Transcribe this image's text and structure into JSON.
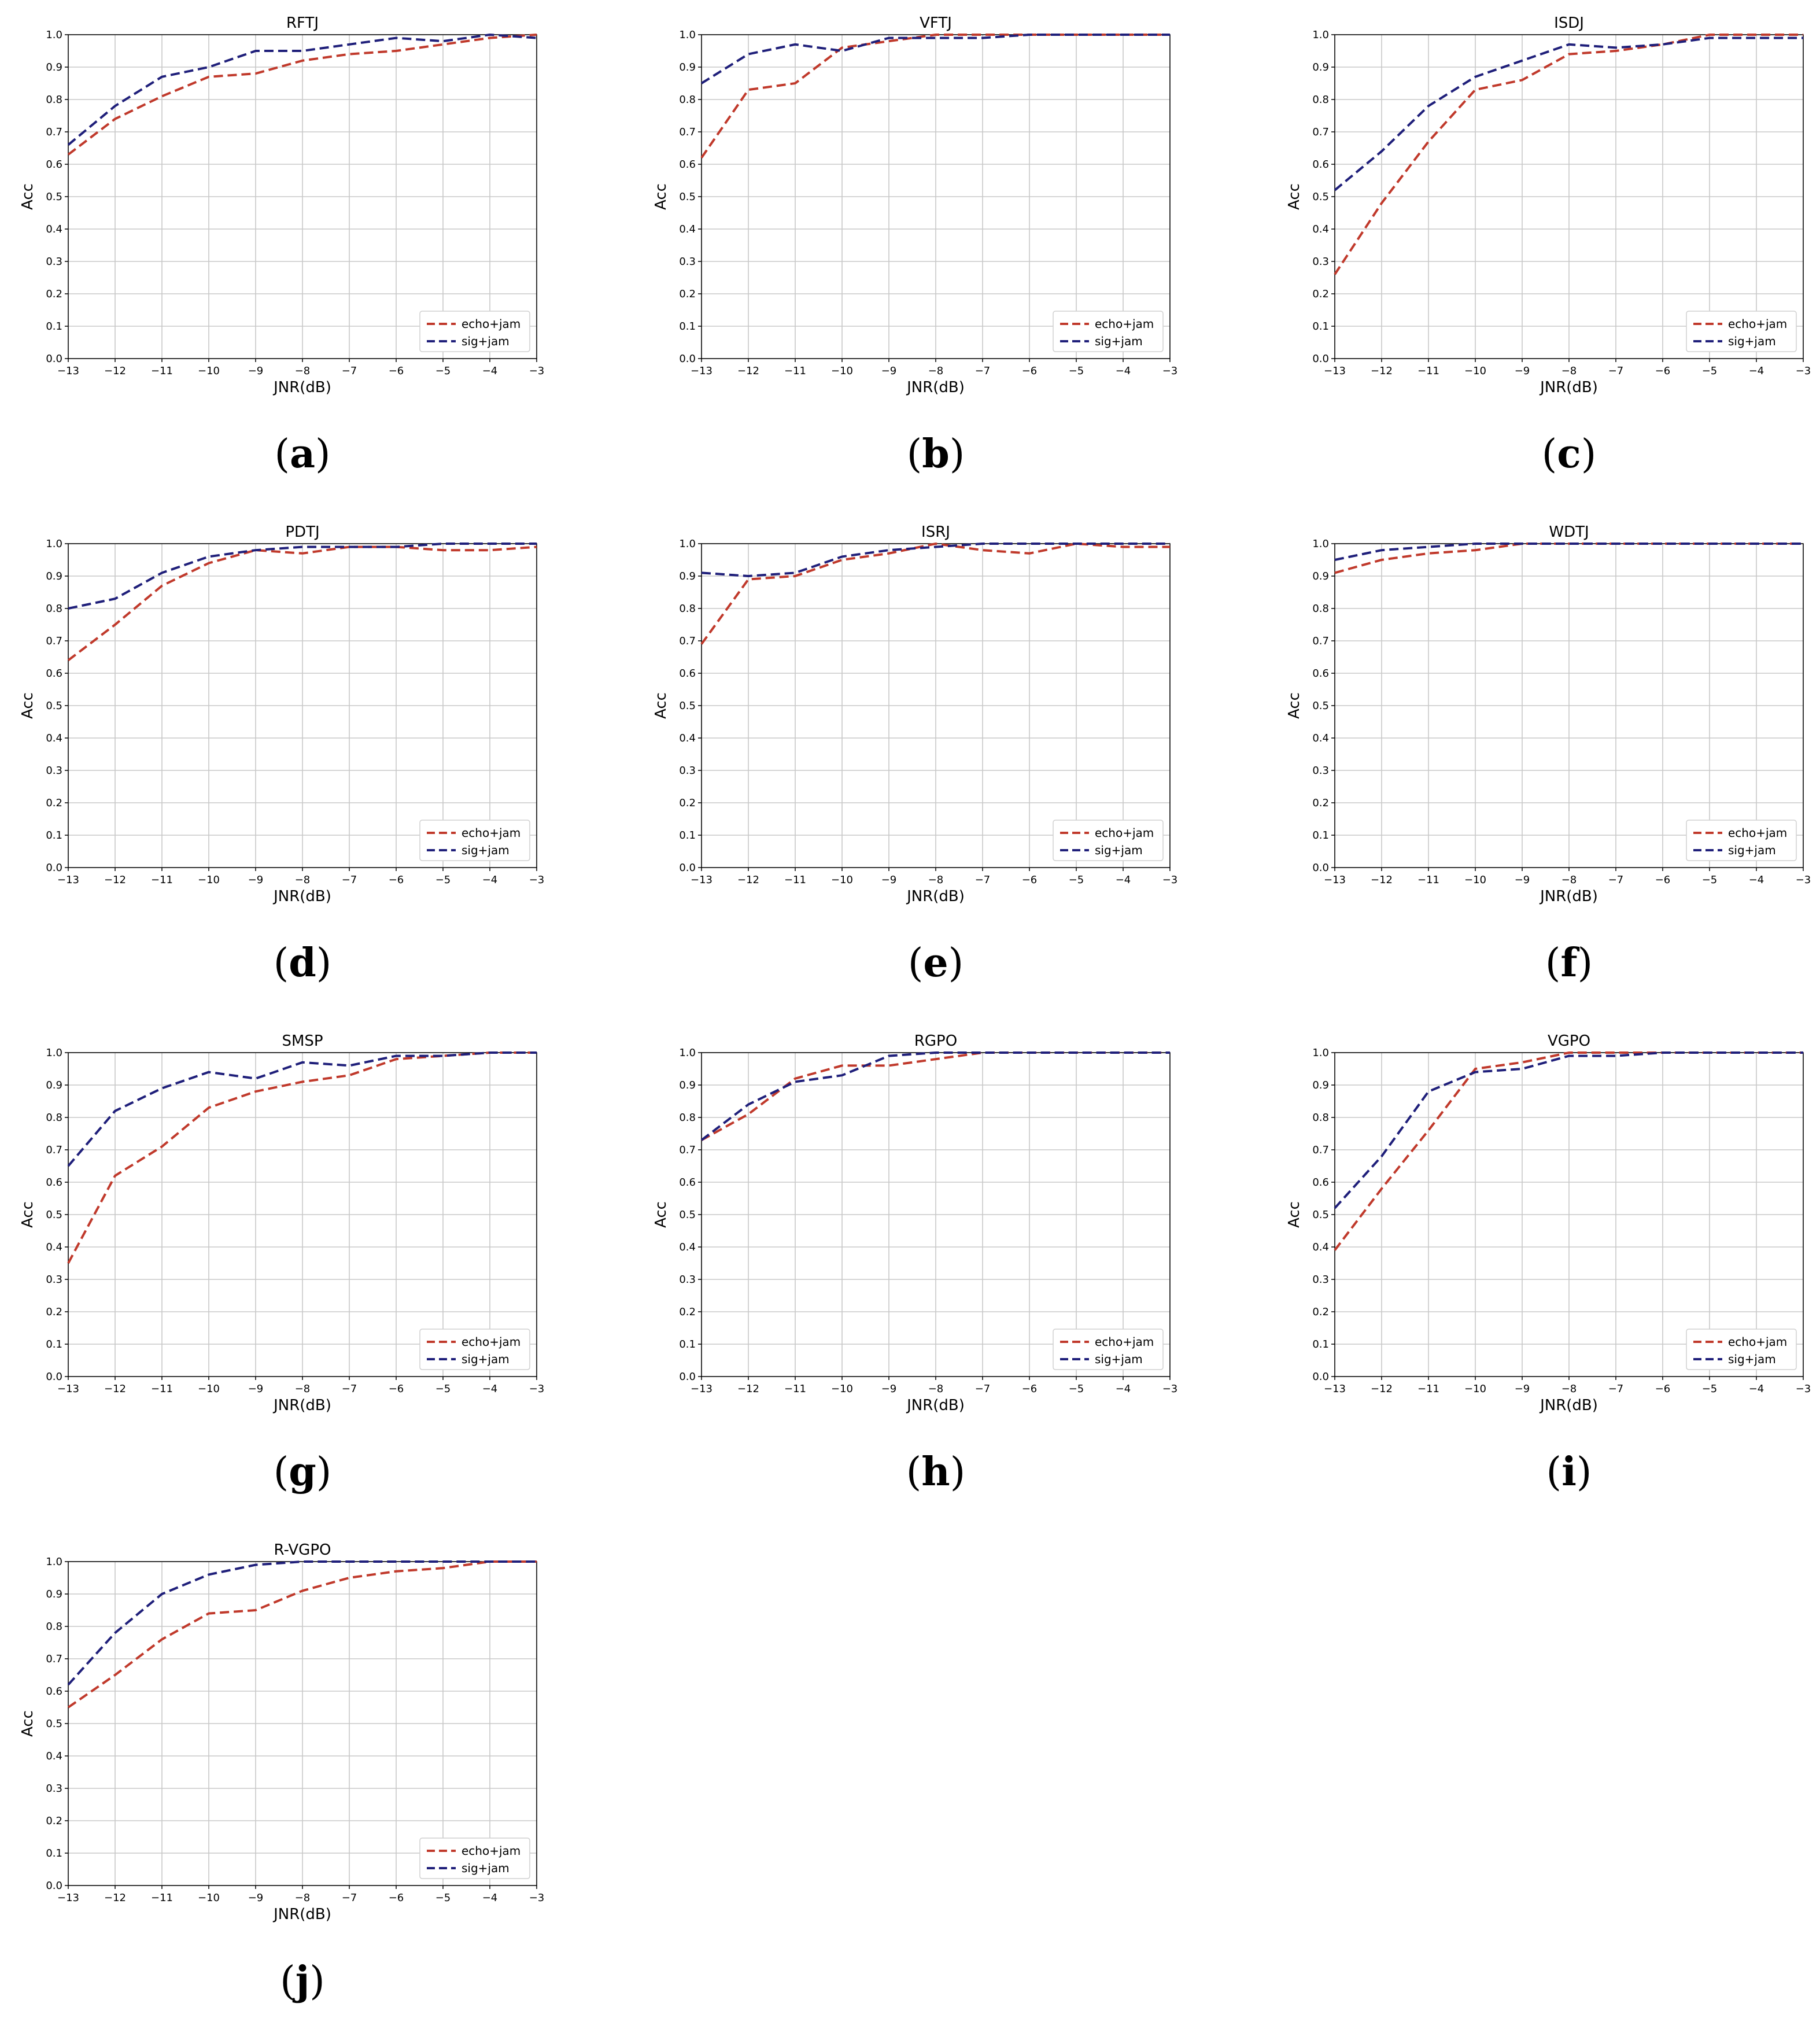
{
  "colors": {
    "echo_jam": "#c0392b",
    "sig_jam": "#1f1f7a",
    "grid": "#c8c8c8"
  },
  "chart_data": [
    {
      "type": "line",
      "panel_label": "a",
      "title": "RFTJ",
      "xlabel": "JNR(dB)",
      "ylabel": "Acc",
      "x": [
        -13,
        -12,
        -11,
        -10,
        -9,
        -8,
        -7,
        -6,
        -5,
        -4,
        -3
      ],
      "xlim": [
        -13,
        -3
      ],
      "ylim": [
        0,
        1
      ],
      "xticks": [
        "−13",
        "−12",
        "−11",
        "−10",
        "−9",
        "−8",
        "−7",
        "−6",
        "−5",
        "−4",
        "−3"
      ],
      "yticks": [
        "0.0",
        "0.1",
        "0.2",
        "0.3",
        "0.4",
        "0.5",
        "0.6",
        "0.7",
        "0.8",
        "0.9",
        "1.0"
      ],
      "grid": true,
      "legend": "lower right",
      "series": [
        {
          "name": "echo+jam",
          "values": [
            0.63,
            0.74,
            0.81,
            0.87,
            0.88,
            0.92,
            0.94,
            0.95,
            0.97,
            0.99,
            1.0
          ]
        },
        {
          "name": "sig+jam",
          "values": [
            0.66,
            0.78,
            0.87,
            0.9,
            0.95,
            0.95,
            0.97,
            0.99,
            0.98,
            1.0,
            0.99
          ]
        }
      ]
    },
    {
      "type": "line",
      "panel_label": "b",
      "title": "VFTJ",
      "xlabel": "JNR(dB)",
      "ylabel": "Acc",
      "x": [
        -13,
        -12,
        -11,
        -10,
        -9,
        -8,
        -7,
        -6,
        -5,
        -4,
        -3
      ],
      "xlim": [
        -13,
        -3
      ],
      "ylim": [
        0,
        1
      ],
      "xticks": [
        "−13",
        "−12",
        "−11",
        "−10",
        "−9",
        "−8",
        "−7",
        "−6",
        "−5",
        "−4",
        "−3"
      ],
      "yticks": [
        "0.0",
        "0.1",
        "0.2",
        "0.3",
        "0.4",
        "0.5",
        "0.6",
        "0.7",
        "0.8",
        "0.9",
        "1.0"
      ],
      "grid": true,
      "legend": "lower right",
      "series": [
        {
          "name": "echo+jam",
          "values": [
            0.62,
            0.83,
            0.85,
            0.96,
            0.98,
            1.0,
            1.0,
            1.0,
            1.0,
            1.0,
            1.0
          ]
        },
        {
          "name": "sig+jam",
          "values": [
            0.85,
            0.94,
            0.97,
            0.95,
            0.99,
            0.99,
            0.99,
            1.0,
            1.0,
            1.0,
            1.0
          ]
        }
      ]
    },
    {
      "type": "line",
      "panel_label": "c",
      "title": "ISDJ",
      "xlabel": "JNR(dB)",
      "ylabel": "Acc",
      "x": [
        -13,
        -12,
        -11,
        -10,
        -9,
        -8,
        -7,
        -6,
        -5,
        -4,
        -3
      ],
      "xlim": [
        -13,
        -3
      ],
      "ylim": [
        0,
        1
      ],
      "xticks": [
        "−13",
        "−12",
        "−11",
        "−10",
        "−9",
        "−8",
        "−7",
        "−6",
        "−5",
        "−4",
        "−3"
      ],
      "yticks": [
        "0.0",
        "0.1",
        "0.2",
        "0.3",
        "0.4",
        "0.5",
        "0.6",
        "0.7",
        "0.8",
        "0.9",
        "1.0"
      ],
      "grid": true,
      "legend": "lower right",
      "series": [
        {
          "name": "echo+jam",
          "values": [
            0.26,
            0.48,
            0.67,
            0.83,
            0.86,
            0.94,
            0.95,
            0.97,
            1.0,
            1.0,
            1.0
          ]
        },
        {
          "name": "sig+jam",
          "values": [
            0.52,
            0.64,
            0.78,
            0.87,
            0.92,
            0.97,
            0.96,
            0.97,
            0.99,
            0.99,
            0.99
          ]
        }
      ]
    },
    {
      "type": "line",
      "panel_label": "d",
      "title": "PDTJ",
      "xlabel": "JNR(dB)",
      "ylabel": "Acc",
      "x": [
        -13,
        -12,
        -11,
        -10,
        -9,
        -8,
        -7,
        -6,
        -5,
        -4,
        -3
      ],
      "xlim": [
        -13,
        -3
      ],
      "ylim": [
        0,
        1
      ],
      "xticks": [
        "−13",
        "−12",
        "−11",
        "−10",
        "−9",
        "−8",
        "−7",
        "−6",
        "−5",
        "−4",
        "−3"
      ],
      "yticks": [
        "0.0",
        "0.1",
        "0.2",
        "0.3",
        "0.4",
        "0.5",
        "0.6",
        "0.7",
        "0.8",
        "0.9",
        "1.0"
      ],
      "grid": true,
      "legend": "lower right",
      "series": [
        {
          "name": "echo+jam",
          "values": [
            0.64,
            0.75,
            0.87,
            0.94,
            0.98,
            0.97,
            0.99,
            0.99,
            0.98,
            0.98,
            0.99
          ]
        },
        {
          "name": "sig+jam",
          "values": [
            0.8,
            0.83,
            0.91,
            0.96,
            0.98,
            0.99,
            0.99,
            0.99,
            1.0,
            1.0,
            1.0
          ]
        }
      ]
    },
    {
      "type": "line",
      "panel_label": "e",
      "title": "ISRJ",
      "xlabel": "JNR(dB)",
      "ylabel": "Acc",
      "x": [
        -13,
        -12,
        -11,
        -10,
        -9,
        -8,
        -7,
        -6,
        -5,
        -4,
        -3
      ],
      "xlim": [
        -13,
        -3
      ],
      "ylim": [
        0,
        1
      ],
      "xticks": [
        "−13",
        "−12",
        "−11",
        "−10",
        "−9",
        "−8",
        "−7",
        "−6",
        "−5",
        "−4",
        "−3"
      ],
      "yticks": [
        "0.0",
        "0.1",
        "0.2",
        "0.3",
        "0.4",
        "0.5",
        "0.6",
        "0.7",
        "0.8",
        "0.9",
        "1.0"
      ],
      "grid": true,
      "legend": "lower right",
      "series": [
        {
          "name": "echo+jam",
          "values": [
            0.69,
            0.89,
            0.9,
            0.95,
            0.97,
            1.0,
            0.98,
            0.97,
            1.0,
            0.99,
            0.99
          ]
        },
        {
          "name": "sig+jam",
          "values": [
            0.91,
            0.9,
            0.91,
            0.96,
            0.98,
            0.99,
            1.0,
            1.0,
            1.0,
            1.0,
            1.0
          ]
        }
      ]
    },
    {
      "type": "line",
      "panel_label": "f",
      "title": "WDTJ",
      "xlabel": "JNR(dB)",
      "ylabel": "Acc",
      "x": [
        -13,
        -12,
        -11,
        -10,
        -9,
        -8,
        -7,
        -6,
        -5,
        -4,
        -3
      ],
      "xlim": [
        -13,
        -3
      ],
      "ylim": [
        0,
        1
      ],
      "xticks": [
        "−13",
        "−12",
        "−11",
        "−10",
        "−9",
        "−8",
        "−7",
        "−6",
        "−5",
        "−4",
        "−3"
      ],
      "yticks": [
        "0.0",
        "0.1",
        "0.2",
        "0.3",
        "0.4",
        "0.5",
        "0.6",
        "0.7",
        "0.8",
        "0.9",
        "1.0"
      ],
      "grid": true,
      "legend": "lower right",
      "series": [
        {
          "name": "echo+jam",
          "values": [
            0.91,
            0.95,
            0.97,
            0.98,
            1.0,
            1.0,
            1.0,
            1.0,
            1.0,
            1.0,
            1.0
          ]
        },
        {
          "name": "sig+jam",
          "values": [
            0.95,
            0.98,
            0.99,
            1.0,
            1.0,
            1.0,
            1.0,
            1.0,
            1.0,
            1.0,
            1.0
          ]
        }
      ]
    },
    {
      "type": "line",
      "panel_label": "g",
      "title": "SMSP",
      "xlabel": "JNR(dB)",
      "ylabel": "Acc",
      "x": [
        -13,
        -12,
        -11,
        -10,
        -9,
        -8,
        -7,
        -6,
        -5,
        -4,
        -3
      ],
      "xlim": [
        -13,
        -3
      ],
      "ylim": [
        0,
        1
      ],
      "xticks": [
        "−13",
        "−12",
        "−11",
        "−10",
        "−9",
        "−8",
        "−7",
        "−6",
        "−5",
        "−4",
        "−3"
      ],
      "yticks": [
        "0.0",
        "0.1",
        "0.2",
        "0.3",
        "0.4",
        "0.5",
        "0.6",
        "0.7",
        "0.8",
        "0.9",
        "1.0"
      ],
      "grid": true,
      "legend": "lower right",
      "series": [
        {
          "name": "echo+jam",
          "values": [
            0.35,
            0.62,
            0.71,
            0.83,
            0.88,
            0.91,
            0.93,
            0.98,
            0.99,
            1.0,
            1.0
          ]
        },
        {
          "name": "sig+jam",
          "values": [
            0.65,
            0.82,
            0.89,
            0.94,
            0.92,
            0.97,
            0.96,
            0.99,
            0.99,
            1.0,
            1.0
          ]
        }
      ]
    },
    {
      "type": "line",
      "panel_label": "h",
      "title": "RGPO",
      "xlabel": "JNR(dB)",
      "ylabel": "Acc",
      "x": [
        -13,
        -12,
        -11,
        -10,
        -9,
        -8,
        -7,
        -6,
        -5,
        -4,
        -3
      ],
      "xlim": [
        -13,
        -3
      ],
      "ylim": [
        0,
        1
      ],
      "xticks": [
        "−13",
        "−12",
        "−11",
        "−10",
        "−9",
        "−8",
        "−7",
        "−6",
        "−5",
        "−4",
        "−3"
      ],
      "yticks": [
        "0.0",
        "0.1",
        "0.2",
        "0.3",
        "0.4",
        "0.5",
        "0.6",
        "0.7",
        "0.8",
        "0.9",
        "1.0"
      ],
      "grid": true,
      "legend": "lower right",
      "series": [
        {
          "name": "echo+jam",
          "values": [
            0.73,
            0.81,
            0.92,
            0.96,
            0.96,
            0.98,
            1.0,
            1.0,
            1.0,
            1.0,
            1.0
          ]
        },
        {
          "name": "sig+jam",
          "values": [
            0.73,
            0.84,
            0.91,
            0.93,
            0.99,
            1.0,
            1.0,
            1.0,
            1.0,
            1.0,
            1.0
          ]
        }
      ]
    },
    {
      "type": "line",
      "panel_label": "i",
      "title": "VGPO",
      "xlabel": "JNR(dB)",
      "ylabel": "Acc",
      "x": [
        -13,
        -12,
        -11,
        -10,
        -9,
        -8,
        -7,
        -6,
        -5,
        -4,
        -3
      ],
      "xlim": [
        -13,
        -3
      ],
      "ylim": [
        0,
        1
      ],
      "xticks": [
        "−13",
        "−12",
        "−11",
        "−10",
        "−9",
        "−8",
        "−7",
        "−6",
        "−5",
        "−4",
        "−3"
      ],
      "yticks": [
        "0.0",
        "0.1",
        "0.2",
        "0.3",
        "0.4",
        "0.5",
        "0.6",
        "0.7",
        "0.8",
        "0.9",
        "1.0"
      ],
      "grid": true,
      "legend": "lower right",
      "series": [
        {
          "name": "echo+jam",
          "values": [
            0.39,
            0.58,
            0.76,
            0.95,
            0.97,
            1.0,
            1.0,
            1.0,
            1.0,
            1.0,
            1.0
          ]
        },
        {
          "name": "sig+jam",
          "values": [
            0.52,
            0.68,
            0.88,
            0.94,
            0.95,
            0.99,
            0.99,
            1.0,
            1.0,
            1.0,
            1.0
          ]
        }
      ]
    },
    {
      "type": "line",
      "panel_label": "j",
      "title": "R-VGPO",
      "xlabel": "JNR(dB)",
      "ylabel": "Acc",
      "x": [
        -13,
        -12,
        -11,
        -10,
        -9,
        -8,
        -7,
        -6,
        -5,
        -4,
        -3
      ],
      "xlim": [
        -13,
        -3
      ],
      "ylim": [
        0,
        1
      ],
      "xticks": [
        "−13",
        "−12",
        "−11",
        "−10",
        "−9",
        "−8",
        "−7",
        "−6",
        "−5",
        "−4",
        "−3"
      ],
      "yticks": [
        "0.0",
        "0.1",
        "0.2",
        "0.3",
        "0.4",
        "0.5",
        "0.6",
        "0.7",
        "0.8",
        "0.9",
        "1.0"
      ],
      "grid": true,
      "legend": "lower right",
      "series": [
        {
          "name": "echo+jam",
          "values": [
            0.55,
            0.65,
            0.76,
            0.84,
            0.85,
            0.91,
            0.95,
            0.97,
            0.98,
            1.0,
            1.0
          ]
        },
        {
          "name": "sig+jam",
          "values": [
            0.62,
            0.78,
            0.9,
            0.96,
            0.99,
            1.0,
            1.0,
            1.0,
            1.0,
            1.0,
            1.0
          ]
        }
      ]
    }
  ]
}
